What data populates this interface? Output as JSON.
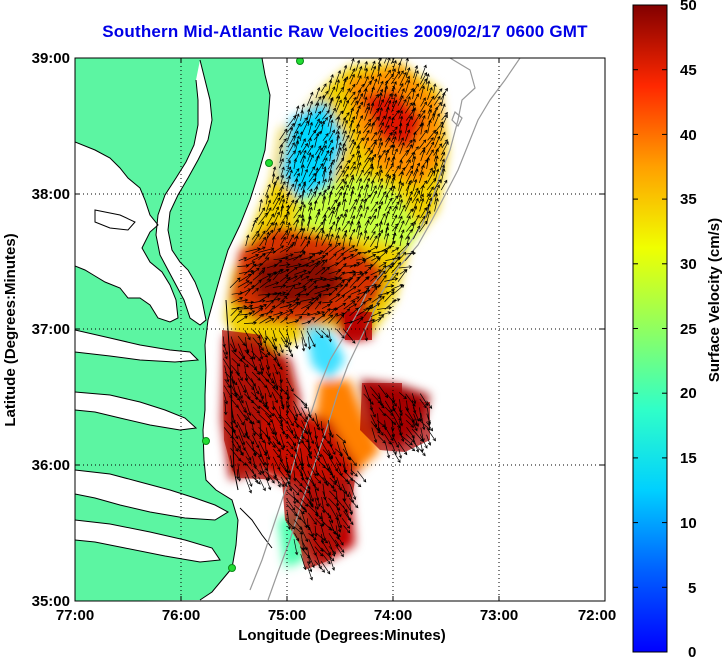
{
  "title": "Southern Mid-Atlantic Raw Velocities 2009/02/17 0600 GMT",
  "x_axis": {
    "label": "Longitude (Degrees:Minutes)",
    "ticks": [
      "77:00",
      "76:00",
      "75:00",
      "74:00",
      "73:00",
      "72:00"
    ],
    "range_deg_west": [
      77,
      72
    ]
  },
  "y_axis": {
    "label": "Latitude (Degrees:Minutes)",
    "ticks": [
      "39:00",
      "38:00",
      "37:00",
      "36:00",
      "35:00"
    ],
    "range_deg_north": [
      35,
      39
    ]
  },
  "colorbar": {
    "label": "Surface Velocity (cm/s)",
    "ticks": [
      "50",
      "45",
      "40",
      "35",
      "30",
      "25",
      "20",
      "15",
      "10",
      "5",
      "0"
    ],
    "range": [
      0,
      50
    ],
    "colormap": "jet"
  },
  "colors": {
    "land": "#5cf5a2",
    "title": "#0000e6",
    "grid": "#000000",
    "isobath": "#9a9a9a",
    "station": "#22dd33",
    "vector": "#000000"
  },
  "map_elements": {
    "grid_style": "dotted",
    "land_features": [
      "Delmarva Peninsula",
      "Chesapeake Bay",
      "North Carolina coast"
    ],
    "overlay": "current-vectors"
  }
}
